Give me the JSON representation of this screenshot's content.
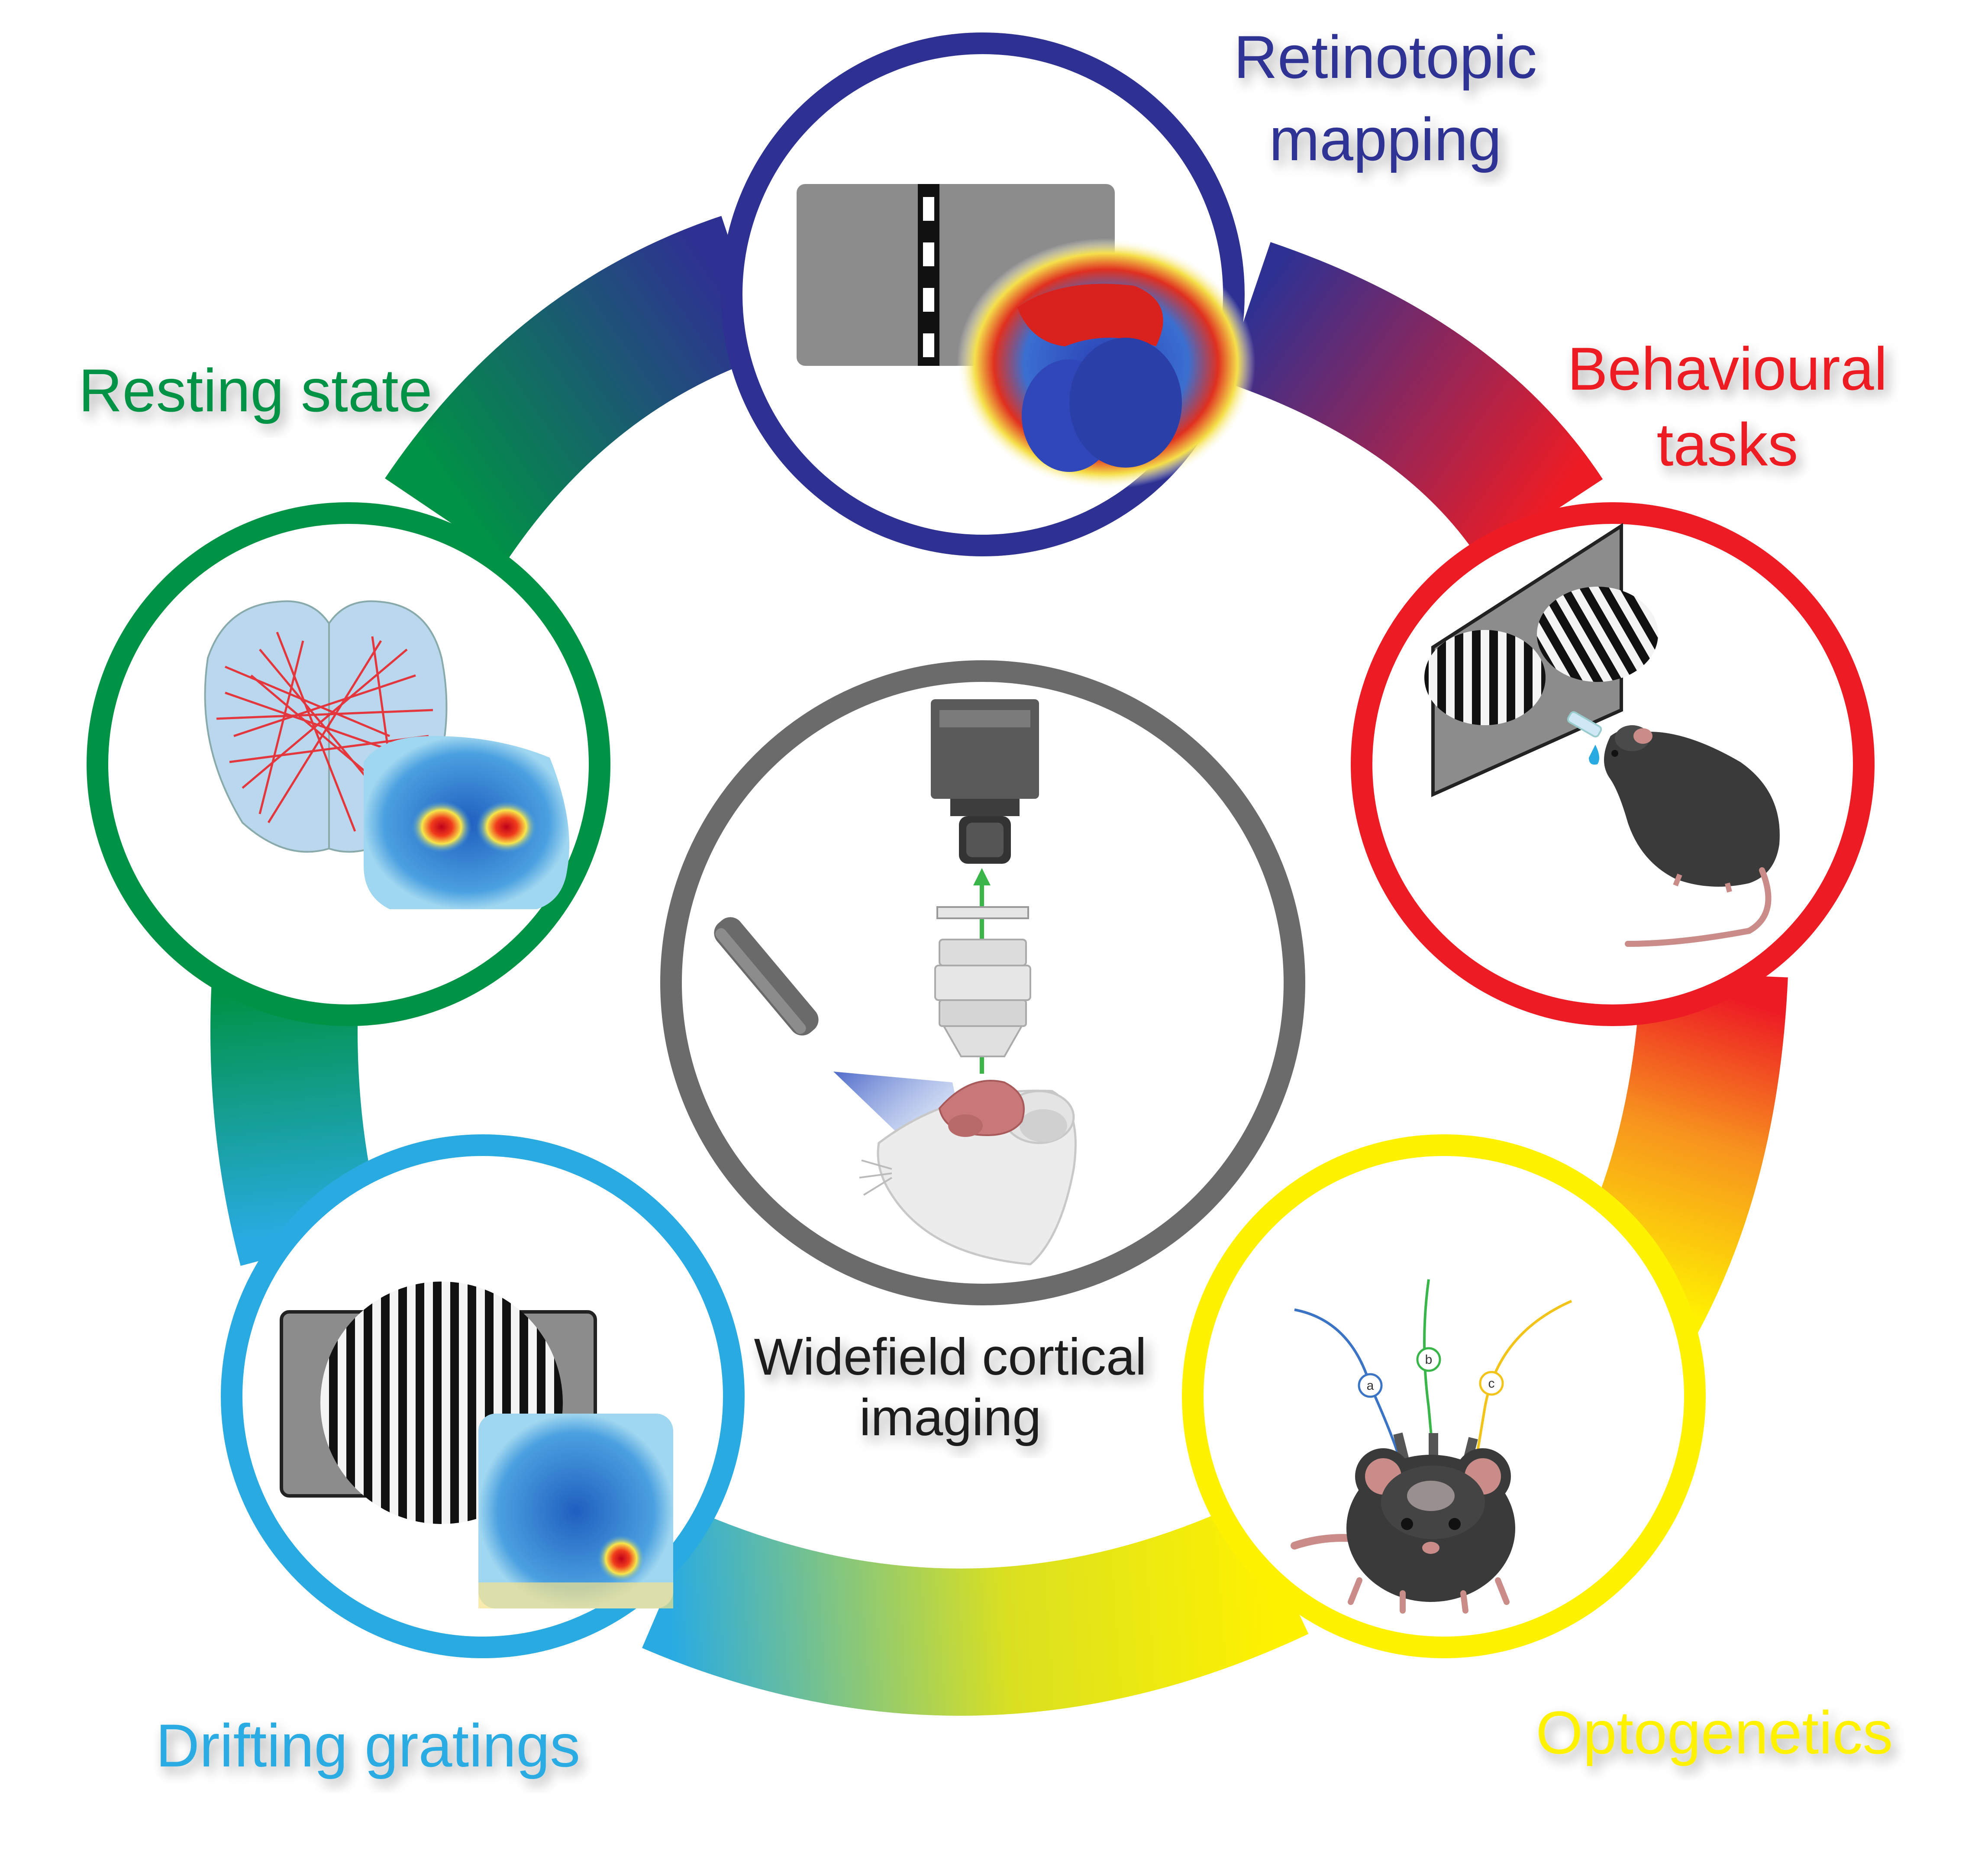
{
  "center": {
    "label_line1": "Widefield cortical",
    "label_line2": "imaging",
    "color": "#6b6b6b"
  },
  "nodes": {
    "retinotopic": {
      "line1": "Retinotopic",
      "line2": "mapping",
      "color": "#2e3192"
    },
    "behavioural": {
      "line1": "Behavioural",
      "line2": "tasks",
      "color": "#ed1c24"
    },
    "optogenetics": {
      "line1": "Optogenetics",
      "color": "#fff200"
    },
    "drifting": {
      "line1": "Drifting gratings",
      "color": "#29abe2"
    },
    "resting": {
      "line1": "Resting state",
      "color": "#009245"
    }
  },
  "fiber_labels": {
    "a": "a",
    "b": "b",
    "c": "c"
  },
  "ring_colors": {
    "blue_to_red": [
      "#2e3192",
      "#ed1c24"
    ],
    "red_to_yellow": [
      "#ed1c24",
      "#f7931e",
      "#fff200"
    ],
    "yellow_to_cyan": [
      "#fff200",
      "#29abe2"
    ],
    "cyan_to_green": [
      "#29abe2",
      "#009245"
    ],
    "green_to_blue": [
      "#009245",
      "#2e3192"
    ]
  }
}
